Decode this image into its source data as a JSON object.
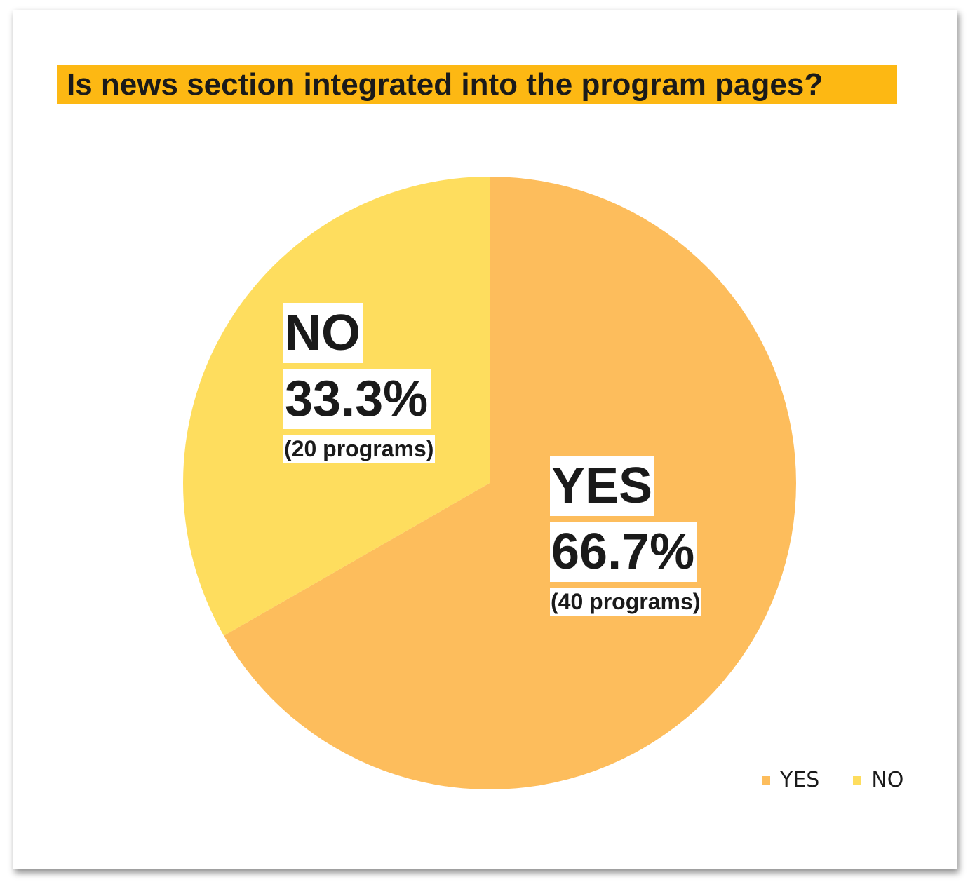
{
  "chart_data": {
    "type": "pie",
    "title": "Is news section integrated into the program pages?",
    "slices": [
      {
        "name": "YES",
        "value": 66.7,
        "pct_label": "66.7%",
        "count_label": "(40 programs)",
        "color": "#FDBD5C"
      },
      {
        "name": "NO",
        "value": 33.3,
        "pct_label": "33.3%",
        "count_label": "(20 programs)",
        "color": "#FEDD5E"
      }
    ],
    "start_angle": "12 o'clock",
    "direction": "clockwise",
    "legend": {
      "position": "bottom-right",
      "items": [
        "YES",
        "NO"
      ]
    },
    "title_highlight_color": "#FDB813"
  }
}
